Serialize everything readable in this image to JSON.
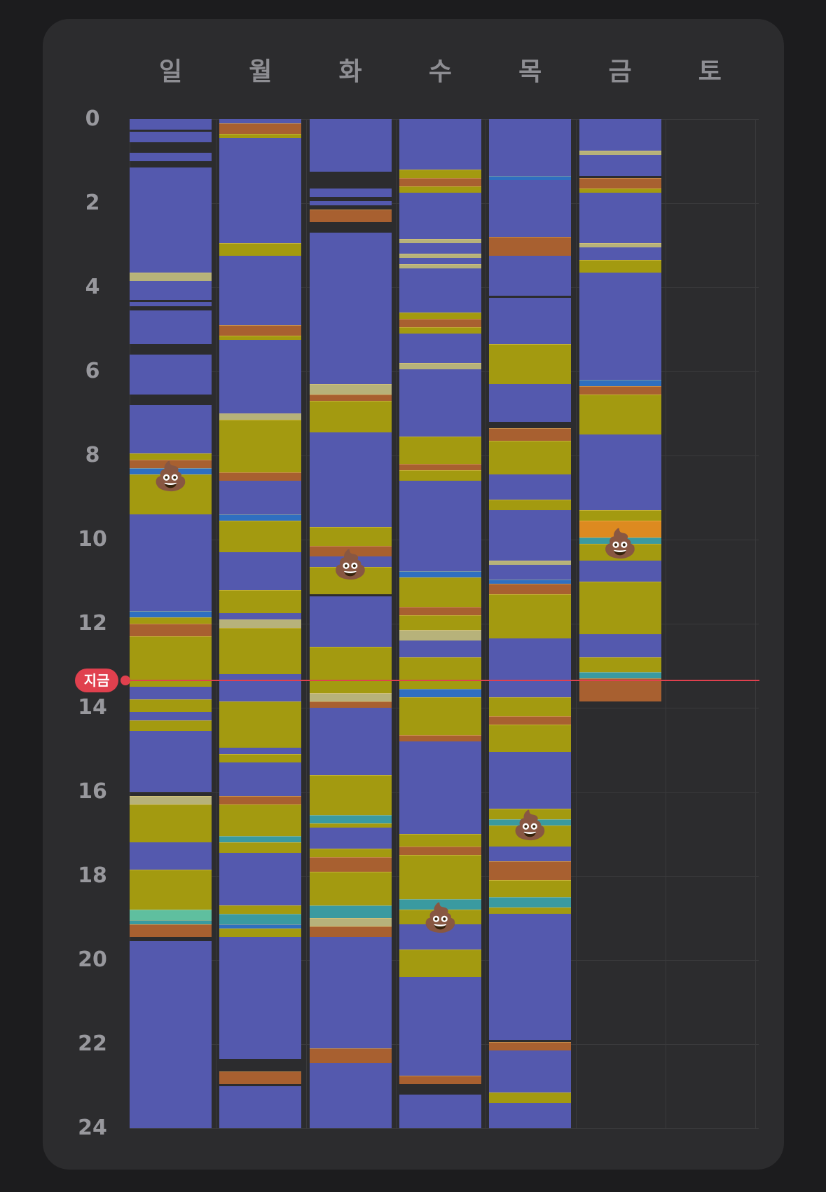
{
  "days": [
    "일",
    "월",
    "화",
    "수",
    "목",
    "금",
    "토"
  ],
  "hour_labels": [
    "0",
    "2",
    "4",
    "6",
    "8",
    "10",
    "12",
    "14",
    "16",
    "18",
    "20",
    "22",
    "24"
  ],
  "now_label": "지금",
  "now_hour": 13.35,
  "colors": {
    "card": "#2c2c2e",
    "background": "#1c1c1e",
    "now": "#e0404e",
    "sleep": "#5459ae",
    "yellow": "#a39a10",
    "orange": "#a86030",
    "blue": "#2f6fc0",
    "teal": "#3a9aa0",
    "light": "#b7b27a",
    "mint": "#5fbf9f",
    "bright_orange": "#dd8a20",
    "empty": "#2c2c2e"
  },
  "columns": [
    {
      "day": "일",
      "segments": [
        [
          0.0,
          0.25,
          "sleep"
        ],
        [
          0.3,
          0.55,
          "sleep"
        ],
        [
          0.8,
          1.0,
          "sleep"
        ],
        [
          1.15,
          3.65,
          "sleep"
        ],
        [
          3.65,
          3.85,
          "light"
        ],
        [
          3.85,
          4.3,
          "sleep"
        ],
        [
          4.35,
          4.45,
          "sleep"
        ],
        [
          4.55,
          5.35,
          "sleep"
        ],
        [
          5.6,
          6.55,
          "sleep"
        ],
        [
          6.8,
          7.95,
          "sleep"
        ],
        [
          7.95,
          8.1,
          "yellow"
        ],
        [
          8.1,
          8.3,
          "orange"
        ],
        [
          8.3,
          8.45,
          "blue"
        ],
        [
          8.45,
          9.4,
          "yellow"
        ],
        [
          9.4,
          11.7,
          "sleep"
        ],
        [
          11.7,
          11.85,
          "blue"
        ],
        [
          11.85,
          12.0,
          "yellow"
        ],
        [
          12.0,
          12.3,
          "orange"
        ],
        [
          12.3,
          13.5,
          "yellow"
        ],
        [
          13.5,
          13.8,
          "sleep"
        ],
        [
          13.8,
          14.1,
          "yellow"
        ],
        [
          14.1,
          14.3,
          "sleep"
        ],
        [
          14.3,
          14.55,
          "yellow"
        ],
        [
          14.55,
          16.0,
          "sleep"
        ],
        [
          16.1,
          16.3,
          "light"
        ],
        [
          16.3,
          17.2,
          "yellow"
        ],
        [
          17.2,
          17.85,
          "sleep"
        ],
        [
          17.85,
          18.8,
          "yellow"
        ],
        [
          18.8,
          19.05,
          "mint"
        ],
        [
          19.05,
          19.15,
          "teal"
        ],
        [
          19.15,
          19.45,
          "orange"
        ],
        [
          19.55,
          24.0,
          "sleep"
        ]
      ],
      "poops": [
        8.5
      ]
    },
    {
      "day": "월",
      "segments": [
        [
          0.0,
          0.1,
          "sleep"
        ],
        [
          0.1,
          0.35,
          "orange"
        ],
        [
          0.35,
          0.45,
          "yellow"
        ],
        [
          0.45,
          2.95,
          "sleep"
        ],
        [
          2.95,
          3.25,
          "yellow"
        ],
        [
          3.25,
          4.9,
          "sleep"
        ],
        [
          4.9,
          5.15,
          "orange"
        ],
        [
          5.15,
          5.25,
          "yellow"
        ],
        [
          5.25,
          7.0,
          "sleep"
        ],
        [
          7.0,
          7.15,
          "light"
        ],
        [
          7.15,
          8.4,
          "yellow"
        ],
        [
          8.4,
          8.6,
          "orange"
        ],
        [
          8.6,
          9.4,
          "sleep"
        ],
        [
          9.4,
          9.55,
          "blue"
        ],
        [
          9.55,
          10.3,
          "yellow"
        ],
        [
          10.3,
          11.2,
          "sleep"
        ],
        [
          11.2,
          11.75,
          "yellow"
        ],
        [
          11.75,
          11.9,
          "sleep"
        ],
        [
          11.9,
          12.1,
          "light"
        ],
        [
          12.1,
          13.2,
          "yellow"
        ],
        [
          13.2,
          13.85,
          "sleep"
        ],
        [
          13.85,
          14.95,
          "yellow"
        ],
        [
          14.95,
          15.1,
          "sleep"
        ],
        [
          15.1,
          15.3,
          "yellow"
        ],
        [
          15.3,
          16.1,
          "sleep"
        ],
        [
          16.1,
          16.3,
          "orange"
        ],
        [
          16.3,
          17.05,
          "yellow"
        ],
        [
          17.05,
          17.2,
          "teal"
        ],
        [
          17.2,
          17.45,
          "yellow"
        ],
        [
          17.45,
          18.7,
          "sleep"
        ],
        [
          18.7,
          18.9,
          "yellow"
        ],
        [
          18.9,
          19.15,
          "teal"
        ],
        [
          19.15,
          19.25,
          "blue"
        ],
        [
          19.25,
          19.45,
          "yellow"
        ],
        [
          19.45,
          22.35,
          "sleep"
        ],
        [
          22.65,
          22.95,
          "orange"
        ],
        [
          23.0,
          24.0,
          "sleep"
        ]
      ],
      "poops": []
    },
    {
      "day": "화",
      "segments": [
        [
          0.0,
          1.25,
          "sleep"
        ],
        [
          1.65,
          1.85,
          "sleep"
        ],
        [
          1.95,
          2.05,
          "sleep"
        ],
        [
          2.15,
          2.45,
          "orange"
        ],
        [
          2.7,
          6.3,
          "sleep"
        ],
        [
          6.3,
          6.55,
          "light"
        ],
        [
          6.55,
          6.7,
          "orange"
        ],
        [
          6.7,
          7.45,
          "yellow"
        ],
        [
          7.45,
          9.7,
          "sleep"
        ],
        [
          9.7,
          10.15,
          "yellow"
        ],
        [
          10.15,
          10.4,
          "orange"
        ],
        [
          10.4,
          10.65,
          "sleep"
        ],
        [
          10.65,
          11.3,
          "yellow"
        ],
        [
          11.35,
          12.55,
          "sleep"
        ],
        [
          12.55,
          13.65,
          "yellow"
        ],
        [
          13.65,
          13.85,
          "light"
        ],
        [
          13.85,
          14.0,
          "orange"
        ],
        [
          14.0,
          15.6,
          "sleep"
        ],
        [
          15.6,
          16.55,
          "yellow"
        ],
        [
          16.55,
          16.75,
          "teal"
        ],
        [
          16.75,
          16.85,
          "yellow"
        ],
        [
          16.85,
          17.35,
          "sleep"
        ],
        [
          17.35,
          17.55,
          "yellow"
        ],
        [
          17.55,
          17.9,
          "orange"
        ],
        [
          17.9,
          18.7,
          "yellow"
        ],
        [
          18.7,
          19.0,
          "teal"
        ],
        [
          19.0,
          19.2,
          "light"
        ],
        [
          19.2,
          19.45,
          "orange"
        ],
        [
          19.45,
          22.1,
          "sleep"
        ],
        [
          22.1,
          22.45,
          "orange"
        ],
        [
          22.45,
          24.0,
          "sleep"
        ]
      ],
      "poops": [
        10.6
      ]
    },
    {
      "day": "수",
      "segments": [
        [
          0.0,
          1.2,
          "sleep"
        ],
        [
          1.2,
          1.4,
          "yellow"
        ],
        [
          1.4,
          1.6,
          "orange"
        ],
        [
          1.6,
          1.75,
          "yellow"
        ],
        [
          1.75,
          2.85,
          "sleep"
        ],
        [
          2.85,
          2.95,
          "light"
        ],
        [
          2.95,
          3.2,
          "sleep"
        ],
        [
          3.2,
          3.3,
          "light"
        ],
        [
          3.3,
          3.45,
          "sleep"
        ],
        [
          3.45,
          3.55,
          "light"
        ],
        [
          3.55,
          4.6,
          "sleep"
        ],
        [
          4.6,
          4.75,
          "yellow"
        ],
        [
          4.75,
          4.95,
          "orange"
        ],
        [
          4.95,
          5.1,
          "yellow"
        ],
        [
          5.1,
          5.8,
          "sleep"
        ],
        [
          5.8,
          5.95,
          "light"
        ],
        [
          5.95,
          7.55,
          "sleep"
        ],
        [
          7.55,
          8.2,
          "yellow"
        ],
        [
          8.2,
          8.35,
          "orange"
        ],
        [
          8.35,
          8.6,
          "yellow"
        ],
        [
          8.6,
          10.75,
          "sleep"
        ],
        [
          10.75,
          10.9,
          "blue"
        ],
        [
          10.9,
          11.6,
          "yellow"
        ],
        [
          11.6,
          11.8,
          "orange"
        ],
        [
          11.8,
          12.15,
          "yellow"
        ],
        [
          12.15,
          12.4,
          "light"
        ],
        [
          12.4,
          12.8,
          "sleep"
        ],
        [
          12.8,
          13.55,
          "yellow"
        ],
        [
          13.55,
          13.75,
          "blue"
        ],
        [
          13.75,
          14.65,
          "yellow"
        ],
        [
          14.65,
          14.8,
          "orange"
        ],
        [
          14.8,
          17.0,
          "sleep"
        ],
        [
          17.0,
          17.3,
          "yellow"
        ],
        [
          17.3,
          17.5,
          "orange"
        ],
        [
          17.5,
          18.55,
          "yellow"
        ],
        [
          18.55,
          18.8,
          "teal"
        ],
        [
          18.8,
          19.15,
          "yellow"
        ],
        [
          19.15,
          19.75,
          "sleep"
        ],
        [
          19.75,
          20.4,
          "yellow"
        ],
        [
          20.4,
          22.75,
          "sleep"
        ],
        [
          22.75,
          22.95,
          "orange"
        ],
        [
          23.2,
          24.0,
          "sleep"
        ]
      ],
      "poops": [
        19.0
      ]
    },
    {
      "day": "목",
      "segments": [
        [
          0.0,
          1.35,
          "sleep"
        ],
        [
          1.35,
          1.45,
          "blue"
        ],
        [
          1.45,
          2.8,
          "sleep"
        ],
        [
          2.8,
          3.25,
          "orange"
        ],
        [
          3.25,
          4.2,
          "sleep"
        ],
        [
          4.25,
          5.35,
          "sleep"
        ],
        [
          5.35,
          6.3,
          "yellow"
        ],
        [
          6.3,
          7.2,
          "sleep"
        ],
        [
          7.35,
          7.65,
          "orange"
        ],
        [
          7.65,
          8.45,
          "yellow"
        ],
        [
          8.45,
          9.05,
          "sleep"
        ],
        [
          9.05,
          9.3,
          "yellow"
        ],
        [
          9.3,
          10.5,
          "sleep"
        ],
        [
          10.5,
          10.6,
          "light"
        ],
        [
          10.6,
          10.95,
          "sleep"
        ],
        [
          10.95,
          11.05,
          "blue"
        ],
        [
          11.05,
          11.3,
          "orange"
        ],
        [
          11.3,
          12.35,
          "yellow"
        ],
        [
          12.35,
          13.75,
          "sleep"
        ],
        [
          13.75,
          14.2,
          "yellow"
        ],
        [
          14.2,
          14.4,
          "orange"
        ],
        [
          14.4,
          15.05,
          "yellow"
        ],
        [
          15.05,
          16.4,
          "sleep"
        ],
        [
          16.4,
          16.65,
          "yellow"
        ],
        [
          16.65,
          16.8,
          "teal"
        ],
        [
          16.8,
          17.3,
          "yellow"
        ],
        [
          17.3,
          17.65,
          "sleep"
        ],
        [
          17.65,
          18.1,
          "orange"
        ],
        [
          18.1,
          18.5,
          "yellow"
        ],
        [
          18.5,
          18.75,
          "teal"
        ],
        [
          18.75,
          18.9,
          "yellow"
        ],
        [
          18.9,
          21.9,
          "sleep"
        ],
        [
          21.95,
          22.15,
          "orange"
        ],
        [
          22.15,
          23.15,
          "sleep"
        ],
        [
          23.15,
          23.4,
          "yellow"
        ],
        [
          23.4,
          24.0,
          "sleep"
        ]
      ],
      "poops": [
        16.8
      ]
    },
    {
      "day": "금",
      "segments": [
        [
          0.0,
          0.75,
          "sleep"
        ],
        [
          0.75,
          0.85,
          "light"
        ],
        [
          0.85,
          1.35,
          "sleep"
        ],
        [
          1.4,
          1.65,
          "orange"
        ],
        [
          1.65,
          1.75,
          "yellow"
        ],
        [
          1.75,
          2.95,
          "sleep"
        ],
        [
          2.95,
          3.05,
          "light"
        ],
        [
          3.05,
          3.35,
          "sleep"
        ],
        [
          3.35,
          3.65,
          "yellow"
        ],
        [
          3.65,
          6.2,
          "sleep"
        ],
        [
          6.2,
          6.35,
          "blue"
        ],
        [
          6.35,
          6.55,
          "orange"
        ],
        [
          6.55,
          7.5,
          "yellow"
        ],
        [
          7.5,
          9.3,
          "sleep"
        ],
        [
          9.3,
          9.55,
          "yellow"
        ],
        [
          9.55,
          9.95,
          "bright_orange"
        ],
        [
          9.95,
          10.1,
          "teal"
        ],
        [
          10.1,
          10.5,
          "yellow"
        ],
        [
          10.5,
          11.0,
          "sleep"
        ],
        [
          11.0,
          12.25,
          "yellow"
        ],
        [
          12.25,
          12.8,
          "sleep"
        ],
        [
          12.8,
          13.15,
          "yellow"
        ],
        [
          13.15,
          13.3,
          "teal"
        ],
        [
          13.3,
          13.85,
          "orange"
        ]
      ],
      "poops": [
        10.1
      ]
    },
    {
      "day": "토",
      "segments": [],
      "poops": []
    }
  ]
}
